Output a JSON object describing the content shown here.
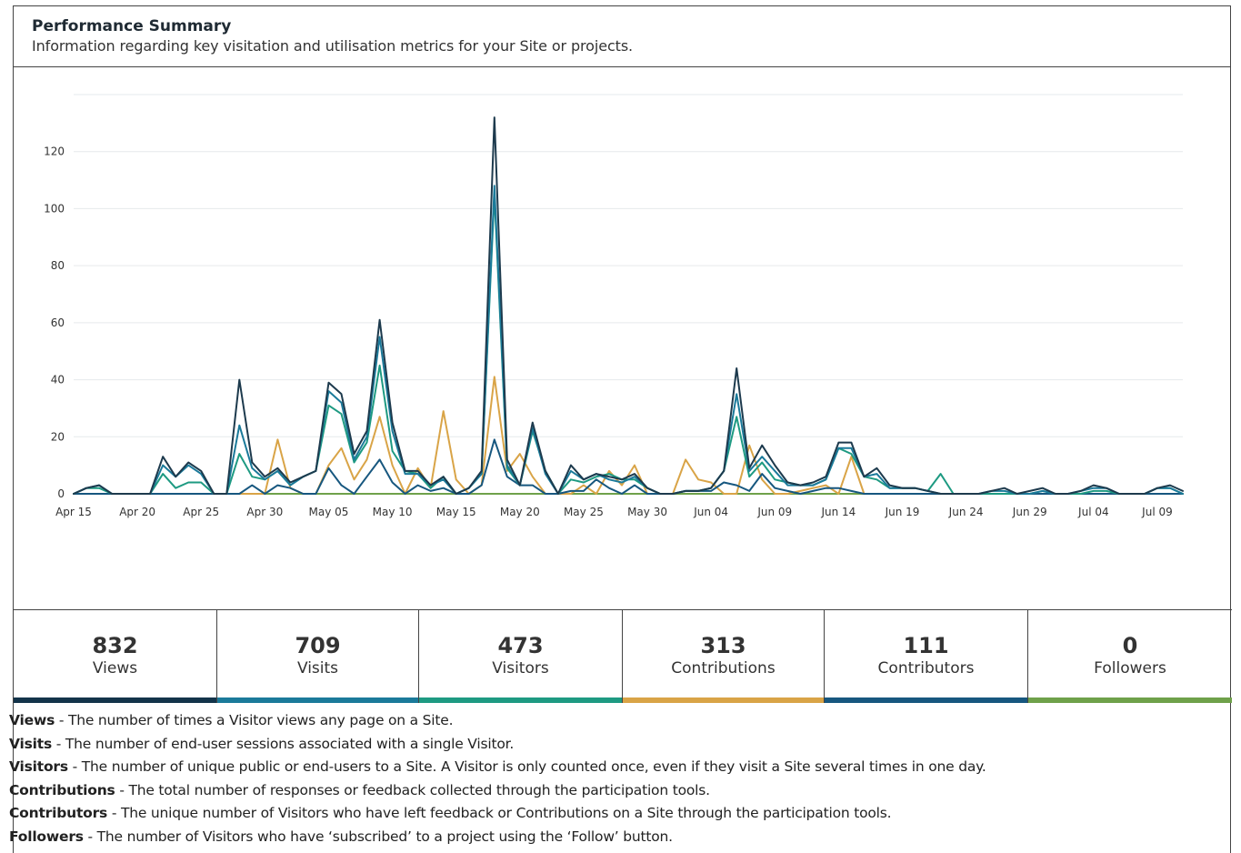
{
  "header": {
    "title": "Performance Summary",
    "subtitle": "Information regarding key visitation and utilisation metrics for your Site or projects."
  },
  "chart_data": {
    "type": "line",
    "title": "",
    "xlabel": "",
    "ylabel": "",
    "ylim": [
      0,
      140
    ],
    "yticks": [
      0,
      20,
      40,
      60,
      80,
      100,
      120
    ],
    "x_tick_labels": [
      "Apr 15",
      "Apr 20",
      "Apr 25",
      "Apr 30",
      "May 05",
      "May 10",
      "May 15",
      "May 20",
      "May 25",
      "May 30",
      "Jun 04",
      "Jun 09",
      "Jun 14",
      "Jun 19",
      "Jun 24",
      "Jun 29",
      "Jul 04",
      "Jul 09"
    ],
    "x_tick_step_days": 5,
    "x_start_label": "Apr 15",
    "grid": true,
    "legend": "none",
    "series": [
      {
        "name": "Views",
        "color": "#1d3a4d",
        "values": [
          0,
          2,
          3,
          0,
          0,
          0,
          0,
          13,
          6,
          11,
          8,
          0,
          0,
          40,
          11,
          6,
          9,
          4,
          6,
          8,
          39,
          35,
          14,
          22,
          61,
          25,
          8,
          8,
          3,
          6,
          0,
          2,
          8,
          132,
          12,
          3,
          25,
          8,
          0,
          10,
          5,
          7,
          6,
          5,
          7,
          2,
          0,
          0,
          1,
          1,
          2,
          8,
          44,
          9,
          17,
          10,
          4,
          3,
          4,
          6,
          18,
          18,
          6,
          9,
          3,
          2,
          2,
          1,
          0,
          0,
          0,
          0,
          1,
          2,
          0,
          1,
          2,
          0,
          0,
          1,
          3,
          2,
          0,
          0,
          0,
          2,
          3,
          1
        ]
      },
      {
        "name": "Visits",
        "color": "#1b7a9a",
        "values": [
          0,
          2,
          3,
          0,
          0,
          0,
          0,
          10,
          6,
          10,
          7,
          0,
          0,
          24,
          9,
          5,
          8,
          3,
          6,
          8,
          36,
          32,
          12,
          20,
          55,
          22,
          7,
          7,
          3,
          5,
          0,
          2,
          7,
          108,
          10,
          3,
          23,
          7,
          0,
          8,
          5,
          7,
          5,
          4,
          6,
          2,
          0,
          0,
          1,
          1,
          2,
          8,
          35,
          8,
          13,
          8,
          3,
          3,
          3,
          5,
          16,
          16,
          6,
          7,
          2,
          2,
          2,
          1,
          0,
          0,
          0,
          0,
          1,
          1,
          0,
          0,
          1,
          0,
          0,
          1,
          2,
          2,
          0,
          0,
          0,
          2,
          2,
          0
        ]
      },
      {
        "name": "Visitors",
        "color": "#1e9a82",
        "values": [
          0,
          2,
          2,
          0,
          0,
          0,
          0,
          7,
          2,
          4,
          4,
          0,
          0,
          14,
          6,
          5,
          8,
          3,
          6,
          8,
          31,
          28,
          11,
          18,
          45,
          15,
          8,
          7,
          2,
          6,
          0,
          2,
          7,
          105,
          9,
          3,
          22,
          8,
          0,
          5,
          4,
          6,
          7,
          5,
          5,
          2,
          0,
          0,
          1,
          1,
          2,
          8,
          27,
          6,
          11,
          5,
          4,
          3,
          3,
          5,
          16,
          14,
          6,
          5,
          2,
          2,
          2,
          1,
          7,
          0,
          0,
          0,
          0,
          0,
          0,
          0,
          1,
          0,
          0,
          0,
          1,
          1,
          0,
          0,
          0,
          2,
          2,
          0
        ]
      },
      {
        "name": "Contributions",
        "color": "#d9a447",
        "values": [
          0,
          0,
          0,
          0,
          0,
          0,
          0,
          0,
          0,
          0,
          0,
          0,
          0,
          0,
          0,
          0,
          19,
          2,
          0,
          0,
          10,
          16,
          5,
          12,
          27,
          10,
          0,
          9,
          2,
          29,
          5,
          0,
          3,
          41,
          8,
          14,
          6,
          0,
          0,
          0,
          3,
          0,
          8,
          3,
          10,
          0,
          0,
          0,
          12,
          5,
          4,
          0,
          0,
          17,
          5,
          0,
          0,
          1,
          2,
          3,
          0,
          13,
          0,
          0,
          0,
          0,
          0,
          0,
          0,
          0,
          0,
          0,
          0,
          0,
          0,
          0,
          0,
          0,
          0,
          0,
          0,
          0,
          0,
          0,
          0,
          0,
          0,
          0
        ]
      },
      {
        "name": "Contributors",
        "color": "#17577f",
        "values": [
          0,
          0,
          0,
          0,
          0,
          0,
          0,
          0,
          0,
          0,
          0,
          0,
          0,
          0,
          3,
          0,
          3,
          2,
          0,
          0,
          9,
          3,
          0,
          6,
          12,
          4,
          0,
          3,
          1,
          2,
          0,
          0,
          3,
          19,
          6,
          3,
          3,
          0,
          0,
          1,
          1,
          5,
          2,
          0,
          3,
          0,
          0,
          0,
          1,
          1,
          1,
          4,
          3,
          1,
          7,
          2,
          1,
          0,
          1,
          2,
          2,
          1,
          0,
          0,
          0,
          0,
          0,
          0,
          0,
          0,
          0,
          0,
          0,
          0,
          0,
          0,
          0,
          0,
          0,
          0,
          0,
          0,
          0,
          0,
          0,
          0,
          0,
          0
        ]
      },
      {
        "name": "Followers",
        "color": "#6fa14a",
        "values": [
          0,
          0,
          0,
          0,
          0,
          0,
          0,
          0,
          0,
          0,
          0,
          0,
          0,
          0,
          0,
          0,
          0,
          0,
          0,
          0,
          0,
          0,
          0,
          0,
          0,
          0,
          0,
          0,
          0,
          0,
          0,
          0,
          0,
          0,
          0,
          0,
          0,
          0,
          0,
          0,
          0,
          0,
          0,
          0,
          0,
          0,
          0,
          0,
          0,
          0,
          0,
          0,
          0,
          0,
          0,
          0,
          0,
          0,
          0,
          0,
          0,
          0,
          0,
          0,
          0,
          0,
          0,
          0,
          0,
          0,
          0,
          0,
          0,
          0,
          0,
          0,
          0,
          0,
          0,
          0,
          0,
          0,
          0,
          0,
          0,
          0,
          0,
          0
        ]
      }
    ]
  },
  "stats": [
    {
      "value": "832",
      "label": "Views",
      "color": "#13344a"
    },
    {
      "value": "709",
      "label": "Visits",
      "color": "#1b7a9a"
    },
    {
      "value": "473",
      "label": "Visitors",
      "color": "#1e9a82"
    },
    {
      "value": "313",
      "label": "Contributions",
      "color": "#d9a447"
    },
    {
      "value": "111",
      "label": "Contributors",
      "color": "#17577f"
    },
    {
      "value": "0",
      "label": "Followers",
      "color": "#6fa14a"
    }
  ],
  "definitions": [
    {
      "term": "Views",
      "text": " - The number of times a Visitor views any page on a Site."
    },
    {
      "term": "Visits",
      "text": " - The number of end-user sessions associated with a single Visitor."
    },
    {
      "term": "Visitors",
      "text": " - The number of unique public or end-users to a Site. A Visitor is only counted once, even if they visit a Site several times in one day."
    },
    {
      "term": "Contributions",
      "text": " - The total number of responses or feedback collected through the participation tools."
    },
    {
      "term": "Contributors",
      "text": " - The unique number of Visitors who have left feedback or Contributions on a Site through the participation tools."
    },
    {
      "term": "Followers",
      "text": " - The number of Visitors who have ‘subscribed’ to a project using the ‘Follow’ button."
    }
  ]
}
